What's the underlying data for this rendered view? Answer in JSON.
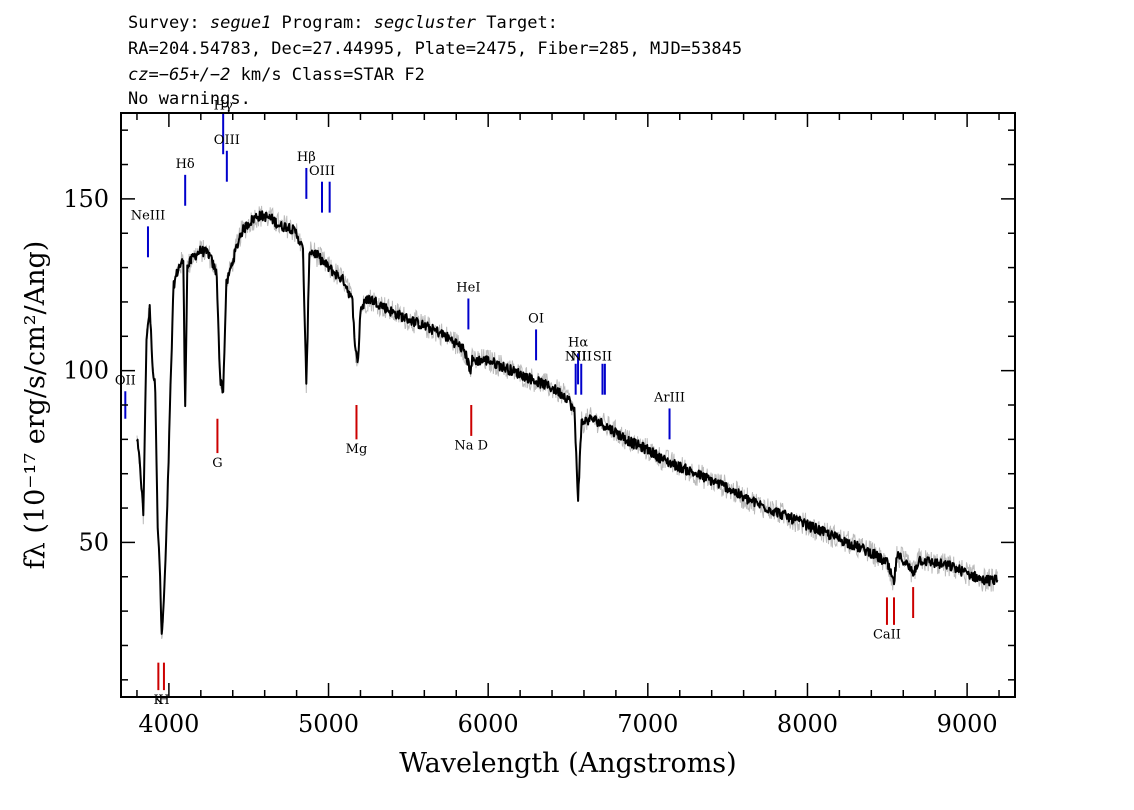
{
  "header": {
    "line1": {
      "survey_label": "Survey: ",
      "survey": "segue1",
      "program_label": " Program: ",
      "program": "segcluster",
      "target_label": " Target:"
    },
    "line2": "RA=204.54783, Dec=27.44995, Plate=2475, Fiber=285, MJD=53845",
    "line3": {
      "cz_label": "cz",
      "cz_value": "=−65+/−2",
      "rest": " km/s Class=STAR F2"
    },
    "line4": "No warnings."
  },
  "chart_data": {
    "type": "line",
    "xlabel": "Wavelength (Angstroms)",
    "ylabel": "fλ (10⁻¹⁷ erg/s/cm²/Ang)",
    "xlim": [
      3700,
      9300
    ],
    "ylim": [
      5,
      175
    ],
    "x_ticks": [
      4000,
      5000,
      6000,
      7000,
      8000,
      9000
    ],
    "y_ticks": [
      50,
      100,
      150
    ],
    "grid": false,
    "series": [
      {
        "color": "#000000",
        "error_color": "#bbbbbb",
        "points": [
          [
            3800,
            80
          ],
          [
            3820,
            72
          ],
          [
            3840,
            58
          ],
          [
            3860,
            110
          ],
          [
            3880,
            118
          ],
          [
            3900,
            100
          ],
          [
            3915,
            95
          ],
          [
            3930,
            55
          ],
          [
            3945,
            40
          ],
          [
            3955,
            22
          ],
          [
            3965,
            30
          ],
          [
            3975,
            40
          ],
          [
            3990,
            60
          ],
          [
            4010,
            95
          ],
          [
            4030,
            125
          ],
          [
            4060,
            130
          ],
          [
            4090,
            132
          ],
          [
            4102,
            90
          ],
          [
            4115,
            130
          ],
          [
            4150,
            133
          ],
          [
            4200,
            135
          ],
          [
            4250,
            134
          ],
          [
            4300,
            128
          ],
          [
            4320,
            98
          ],
          [
            4340,
            94
          ],
          [
            4360,
            125
          ],
          [
            4400,
            132
          ],
          [
            4450,
            140
          ],
          [
            4500,
            143
          ],
          [
            4550,
            145
          ],
          [
            4600,
            145
          ],
          [
            4650,
            144
          ],
          [
            4700,
            142
          ],
          [
            4750,
            142
          ],
          [
            4800,
            140
          ],
          [
            4840,
            135
          ],
          [
            4861,
            95
          ],
          [
            4880,
            135
          ],
          [
            4920,
            134
          ],
          [
            5000,
            130
          ],
          [
            5050,
            128
          ],
          [
            5100,
            126
          ],
          [
            5150,
            120
          ],
          [
            5170,
            105
          ],
          [
            5185,
            103
          ],
          [
            5200,
            118
          ],
          [
            5250,
            121
          ],
          [
            5300,
            120
          ],
          [
            5400,
            117
          ],
          [
            5500,
            115
          ],
          [
            5600,
            113
          ],
          [
            5700,
            111
          ],
          [
            5800,
            108
          ],
          [
            5850,
            106
          ],
          [
            5890,
            100
          ],
          [
            5900,
            103
          ],
          [
            6000,
            103
          ],
          [
            6100,
            101
          ],
          [
            6200,
            99
          ],
          [
            6300,
            97
          ],
          [
            6400,
            95
          ],
          [
            6500,
            92
          ],
          [
            6540,
            88
          ],
          [
            6563,
            63
          ],
          [
            6585,
            85
          ],
          [
            6650,
            86
          ],
          [
            6700,
            85
          ],
          [
            6800,
            82
          ],
          [
            6900,
            79
          ],
          [
            7000,
            77
          ],
          [
            7100,
            74
          ],
          [
            7200,
            72
          ],
          [
            7300,
            70
          ],
          [
            7400,
            68
          ],
          [
            7500,
            66
          ],
          [
            7600,
            63
          ],
          [
            7700,
            61
          ],
          [
            7800,
            59
          ],
          [
            7900,
            57
          ],
          [
            8000,
            55
          ],
          [
            8100,
            53
          ],
          [
            8200,
            51
          ],
          [
            8300,
            49
          ],
          [
            8400,
            47
          ],
          [
            8498,
            44
          ],
          [
            8542,
            38
          ],
          [
            8560,
            46
          ],
          [
            8600,
            45
          ],
          [
            8662,
            41
          ],
          [
            8700,
            45
          ],
          [
            8800,
            44
          ],
          [
            8900,
            43
          ],
          [
            9000,
            41
          ],
          [
            9100,
            39
          ],
          [
            9190,
            39
          ]
        ]
      }
    ],
    "emission_lines": [
      {
        "label": "OII",
        "x": 3727,
        "y1": 86,
        "y2": 94,
        "label_y": 96
      },
      {
        "label": "NeIII",
        "x": 3869,
        "y1": 133,
        "y2": 142,
        "label_y": 144
      },
      {
        "label": "Hδ",
        "x": 4102,
        "y1": 148,
        "y2": 157,
        "label_y": 159
      },
      {
        "label": "Hγ",
        "x": 4340,
        "y1": 163,
        "y2": 175,
        "label_y": 176
      },
      {
        "label": "OIII",
        "x": 4363,
        "y1": 155,
        "y2": 164,
        "label_y": 166
      },
      {
        "label": "Hβ",
        "x": 4861,
        "y1": 150,
        "y2": 159,
        "label_y": 161
      },
      {
        "label": "OIII",
        "x": 4959,
        "y1": 146,
        "y2": 155,
        "label_y": 157
      },
      {
        "label": "",
        "x": 5007,
        "y1": 146,
        "y2": 155
      },
      {
        "label": "HeI",
        "x": 5876,
        "y1": 112,
        "y2": 121,
        "label_y": 123
      },
      {
        "label": "OI",
        "x": 6300,
        "y1": 103,
        "y2": 112,
        "label_y": 114
      },
      {
        "label": "NII",
        "x": 6548,
        "y1": 93,
        "y2": 102,
        "label_y": 103
      },
      {
        "label": "Hα",
        "x": 6563,
        "y1": 96,
        "y2": 105,
        "label_y": 107
      },
      {
        "label": "NII",
        "x": 6583,
        "y1": 93,
        "y2": 102,
        "label_y": 103
      },
      {
        "label": "SII",
        "x": 6716,
        "y1": 93,
        "y2": 102,
        "label_y": 103
      },
      {
        "label": "",
        "x": 6731,
        "y1": 93,
        "y2": 102
      },
      {
        "label": "ArIII",
        "x": 7136,
        "y1": 80,
        "y2": 89,
        "label_y": 91
      }
    ],
    "absorption_lines": [
      {
        "label": "K",
        "x": 3934,
        "y1": 7,
        "y2": 15,
        "label_y": 3
      },
      {
        "label": "H",
        "x": 3969,
        "y1": 7,
        "y2": 15,
        "label_y": 3
      },
      {
        "label": "G",
        "x": 4304,
        "y1": 76,
        "y2": 86,
        "label_y": 72
      },
      {
        "label": "Mg",
        "x": 5175,
        "y1": 80,
        "y2": 90,
        "label_y": 76
      },
      {
        "label": "Na D",
        "x": 5894,
        "y1": 81,
        "y2": 90,
        "label_y": 77
      },
      {
        "label": "CaII",
        "x": 8498,
        "y1": 26,
        "y2": 34,
        "label_y": 22
      },
      {
        "label": "",
        "x": 8542,
        "y1": 26,
        "y2": 34
      },
      {
        "label": "",
        "x": 8662,
        "y1": 28,
        "y2": 37
      }
    ],
    "emission_color": "#0000cc",
    "absorption_color": "#cc0000"
  }
}
